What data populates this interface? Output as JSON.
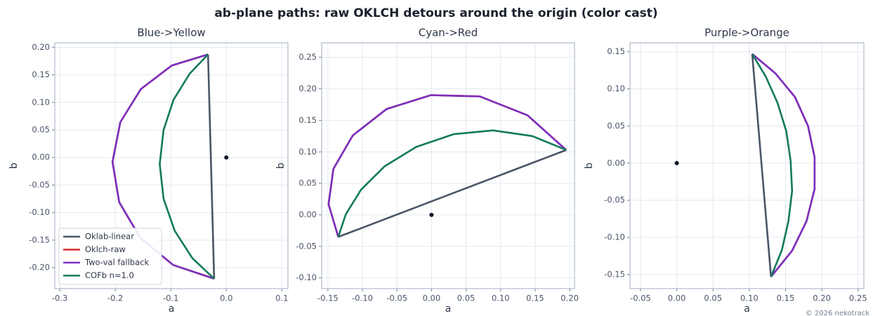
{
  "title": "ab-plane paths: raw OKLCH detours around the origin (color cast)",
  "footer": "© 2026 nekotrack",
  "chart_data": [
    {
      "type": "line",
      "title": "Blue->Yellow",
      "xlabel": "a",
      "ylabel": "b",
      "grid": true,
      "legend": "lower left",
      "xlim": [
        -0.309,
        0.111
      ],
      "ylim": [
        -0.238,
        0.208
      ],
      "xticks": [
        -0.3,
        -0.2,
        -0.1,
        {
          "value": 0,
          "label": "0.0"
        },
        0.1
      ],
      "yticks": [
        {
          "value": -0.2,
          "label": "-0.20"
        },
        -0.15,
        {
          "value": -0.1,
          "label": "-0.10"
        },
        -0.05,
        {
          "value": 0,
          "label": "0.00"
        },
        0.05,
        {
          "value": 0.1,
          "label": "0.10"
        },
        0.15,
        {
          "value": 0.2,
          "label": "0.20"
        }
      ],
      "points": {
        "color": "#111827",
        "x": [
          0
        ],
        "y": [
          0
        ]
      },
      "series": [
        {
          "name": "Oklab-linear",
          "color": "#4a5568",
          "x": [
            -0.022,
            -0.033
          ],
          "y": [
            -0.22,
            0.187
          ]
        },
        {
          "name": "Oklch-raw",
          "color": "#d62f2f",
          "x": [
            -0.022,
            -0.096,
            -0.155,
            -0.193,
            -0.205,
            -0.191,
            -0.154,
            -0.098,
            -0.033
          ],
          "y": [
            -0.22,
            -0.195,
            -0.146,
            -0.081,
            -0.008,
            0.064,
            0.124,
            0.167,
            0.187
          ]
        },
        {
          "name": "Two-val fallback",
          "color": "#7b2fbf",
          "x": [
            -0.022,
            -0.096,
            -0.155,
            -0.193,
            -0.205,
            -0.191,
            -0.154,
            -0.098,
            -0.033
          ],
          "y": [
            -0.22,
            -0.195,
            -0.146,
            -0.081,
            -0.008,
            0.064,
            0.124,
            0.167,
            0.187
          ]
        },
        {
          "name": "COFb n=1.0",
          "color": "#117a5a",
          "x": [
            -0.022,
            -0.061,
            -0.093,
            -0.113,
            -0.12,
            -0.113,
            -0.095,
            -0.066,
            -0.033
          ],
          "y": [
            -0.22,
            -0.183,
            -0.133,
            -0.075,
            -0.012,
            0.05,
            0.105,
            0.152,
            0.187
          ]
        }
      ]
    },
    {
      "type": "line",
      "title": "Cyan->Red",
      "xlabel": "a",
      "ylabel": "b",
      "grid": true,
      "xlim": [
        -0.159,
        0.207
      ],
      "ylim": [
        -0.117,
        0.273
      ],
      "xticks": [
        -0.15,
        {
          "value": -0.1,
          "label": "-0.10"
        },
        -0.05,
        {
          "value": 0,
          "label": "0.00"
        },
        0.05,
        {
          "value": 0.1,
          "label": "0.10"
        },
        0.15,
        {
          "value": 0.2,
          "label": "0.20"
        }
      ],
      "yticks": [
        {
          "value": -0.1,
          "label": "-0.10"
        },
        -0.05,
        {
          "value": 0,
          "label": "0.00"
        },
        0.05,
        {
          "value": 0.1,
          "label": "0.10"
        },
        0.15,
        {
          "value": 0.2,
          "label": "0.20"
        },
        0.25
      ],
      "points": {
        "color": "#111827",
        "x": [
          0
        ],
        "y": [
          0
        ]
      },
      "series": [
        {
          "color": "#4a5568",
          "x": [
            -0.135,
            0.195
          ],
          "y": [
            -0.035,
            0.103
          ]
        },
        {
          "color": "#d62f2f",
          "x": [
            -0.135,
            -0.149,
            -0.142,
            -0.114,
            -0.065,
            -0.001,
            0.07,
            0.139,
            0.195
          ],
          "y": [
            -0.035,
            0.017,
            0.073,
            0.126,
            0.168,
            0.19,
            0.188,
            0.158,
            0.103
          ]
        },
        {
          "color": "#7b2fbf",
          "x": [
            -0.135,
            -0.149,
            -0.142,
            -0.114,
            -0.065,
            -0.001,
            0.07,
            0.139,
            0.195
          ],
          "y": [
            -0.035,
            0.017,
            0.073,
            0.126,
            0.168,
            0.19,
            0.188,
            0.158,
            0.103
          ]
        },
        {
          "color": "#117a5a",
          "x": [
            -0.135,
            -0.124,
            -0.102,
            -0.068,
            -0.022,
            0.032,
            0.089,
            0.146,
            0.195
          ],
          "y": [
            -0.035,
            0.001,
            0.04,
            0.077,
            0.108,
            0.128,
            0.134,
            0.125,
            0.103
          ]
        }
      ]
    },
    {
      "type": "line",
      "title": "Purple->Orange",
      "xlabel": "a",
      "ylabel": "b",
      "grid": true,
      "xlim": [
        -0.0645,
        0.258
      ],
      "ylim": [
        -0.169,
        0.162
      ],
      "xticks": [
        -0.05,
        {
          "value": 0,
          "label": "0.00"
        },
        0.05,
        {
          "value": 0.1,
          "label": "0.10"
        },
        0.15,
        {
          "value": 0.2,
          "label": "0.20"
        },
        0.25
      ],
      "yticks": [
        -0.15,
        {
          "value": -0.1,
          "label": "-0.10"
        },
        -0.05,
        {
          "value": 0,
          "label": "0.00"
        },
        0.05,
        {
          "value": 0.1,
          "label": "0.10"
        },
        0.15
      ],
      "points": {
        "color": "#111827",
        "x": [
          0
        ],
        "y": [
          0
        ]
      },
      "series": [
        {
          "color": "#4a5568",
          "x": [
            0.104,
            0.13
          ],
          "y": [
            0.147,
            -0.153
          ]
        },
        {
          "color": "#d62f2f",
          "x": [
            0.104,
            0.136,
            0.163,
            0.181,
            0.19,
            0.19,
            0.179,
            0.159,
            0.13
          ],
          "y": [
            0.147,
            0.121,
            0.089,
            0.05,
            0.008,
            -0.035,
            -0.078,
            -0.118,
            -0.153
          ]
        },
        {
          "color": "#7b2fbf",
          "x": [
            0.104,
            0.136,
            0.163,
            0.181,
            0.19,
            0.19,
            0.179,
            0.159,
            0.13
          ],
          "y": [
            0.147,
            0.121,
            0.089,
            0.05,
            0.008,
            -0.035,
            -0.078,
            -0.118,
            -0.153
          ]
        },
        {
          "color": "#117a5a",
          "x": [
            0.104,
            0.123,
            0.139,
            0.151,
            0.157,
            0.159,
            0.154,
            0.145,
            0.13
          ],
          "y": [
            0.147,
            0.116,
            0.081,
            0.043,
            0.003,
            -0.0375,
            -0.078,
            -0.117,
            -0.153
          ]
        }
      ]
    }
  ]
}
